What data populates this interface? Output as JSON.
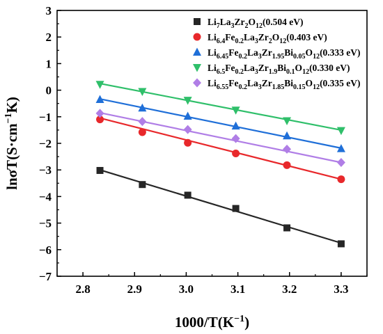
{
  "chart_data": {
    "type": "scatter",
    "xlabel": "1000/T(K",
    "xlabel_sup": "−1",
    "xlabel_end": ")",
    "ylabel": "lnσT(S·cm",
    "ylabel_sup": "−1",
    "ylabel_end": "K)",
    "xlim": [
      2.75,
      3.35
    ],
    "ylim": [
      -7,
      3
    ],
    "xticks": [
      "2.8",
      "2.9",
      "3.0",
      "3.1",
      "3.2",
      "3.3"
    ],
    "yticks": [
      "3",
      "2",
      "1",
      "0",
      "−1",
      "−2",
      "−3",
      "−4",
      "−5",
      "−6",
      "−7"
    ],
    "legend_position": "top-right",
    "x": [
      2.833,
      2.915,
      3.003,
      3.096,
      3.195,
      3.3
    ],
    "series": [
      {
        "name": "Li7La3Zr2O12(0.504 eV)",
        "legend_parts": [
          [
            "Li",
            ""
          ],
          [
            "7",
            "sub"
          ],
          [
            "La",
            ""
          ],
          [
            "3",
            "sub"
          ],
          [
            "Zr",
            ""
          ],
          [
            "2",
            "sub"
          ],
          [
            "O",
            ""
          ],
          [
            "12",
            "sub"
          ],
          [
            "(0.504 eV)",
            ""
          ]
        ],
        "color": "#262626",
        "marker": "square",
        "values": [
          -3.02,
          -3.55,
          -3.95,
          -4.45,
          -5.18,
          -5.78
        ],
        "fit": [
          -3.0,
          -5.75
        ]
      },
      {
        "name": "Li6.4Fe0.2La3Zr2O12(0.403 eV)",
        "legend_parts": [
          [
            "Li",
            ""
          ],
          [
            "6.4",
            "sub"
          ],
          [
            "Fe",
            ""
          ],
          [
            "0.2",
            "sub"
          ],
          [
            "La",
            ""
          ],
          [
            "3",
            "sub"
          ],
          [
            "Zr",
            ""
          ],
          [
            "2",
            "sub"
          ],
          [
            "O",
            ""
          ],
          [
            "12",
            "sub"
          ],
          [
            "(0.403 eV)",
            ""
          ]
        ],
        "color": "#e8282b",
        "marker": "circle",
        "values": [
          -1.1,
          -1.58,
          -1.98,
          -2.38,
          -2.82,
          -3.35
        ],
        "fit": [
          -1.05,
          -3.35
        ]
      },
      {
        "name": "Li6.45Fe0.2La3Zr1.95Bi0.05O12(0.333 eV)",
        "legend_parts": [
          [
            "Li",
            ""
          ],
          [
            "6.45",
            "sub"
          ],
          [
            "Fe",
            ""
          ],
          [
            "0.2",
            "sub"
          ],
          [
            "La",
            ""
          ],
          [
            "3",
            "sub"
          ],
          [
            "Zr",
            ""
          ],
          [
            "1.95",
            "sub"
          ],
          [
            "Bi",
            ""
          ],
          [
            "0.05",
            "sub"
          ],
          [
            "O",
            ""
          ],
          [
            "12",
            "sub"
          ],
          [
            "(0.333 eV)",
            ""
          ]
        ],
        "color": "#1f6fd8",
        "marker": "triangle-up",
        "values": [
          -0.35,
          -0.67,
          -0.98,
          -1.35,
          -1.72,
          -2.2
        ],
        "fit": [
          -0.33,
          -2.18
        ]
      },
      {
        "name": "Li6.5Fe0.2La3Zr1.9Bi0.1O12(0.330 eV)",
        "legend_parts": [
          [
            "Li",
            ""
          ],
          [
            "6.5",
            "sub"
          ],
          [
            "Fe",
            ""
          ],
          [
            "0.2",
            "sub"
          ],
          [
            "La",
            ""
          ],
          [
            "3",
            "sub"
          ],
          [
            "Zr",
            ""
          ],
          [
            "1.9",
            "sub"
          ],
          [
            "Bi",
            ""
          ],
          [
            "0.1",
            "sub"
          ],
          [
            "O",
            ""
          ],
          [
            "12",
            "sub"
          ],
          [
            "(0.330 eV)",
            ""
          ]
        ],
        "color": "#2fbf6a",
        "marker": "triangle-down",
        "values": [
          0.22,
          -0.05,
          -0.38,
          -0.75,
          -1.15,
          -1.52
        ],
        "fit": [
          0.25,
          -1.5
        ]
      },
      {
        "name": "Li6.55Fe0.2La3Zr1.85Bi0.15O12(0.335 eV)",
        "legend_parts": [
          [
            "Li",
            ""
          ],
          [
            "6.55",
            "sub"
          ],
          [
            "Fe",
            ""
          ],
          [
            "0.2",
            "sub"
          ],
          [
            "La",
            ""
          ],
          [
            "3",
            "sub"
          ],
          [
            "Zr",
            ""
          ],
          [
            "1.85",
            "sub"
          ],
          [
            "Bi",
            ""
          ],
          [
            "0.15",
            "sub"
          ],
          [
            "O",
            ""
          ],
          [
            "12",
            "sub"
          ],
          [
            "(0.335 eV)",
            ""
          ]
        ],
        "color": "#b07ee6",
        "marker": "diamond",
        "values": [
          -0.87,
          -1.18,
          -1.48,
          -1.82,
          -2.22,
          -2.72
        ],
        "fit": [
          -0.85,
          -2.72
        ]
      }
    ]
  }
}
